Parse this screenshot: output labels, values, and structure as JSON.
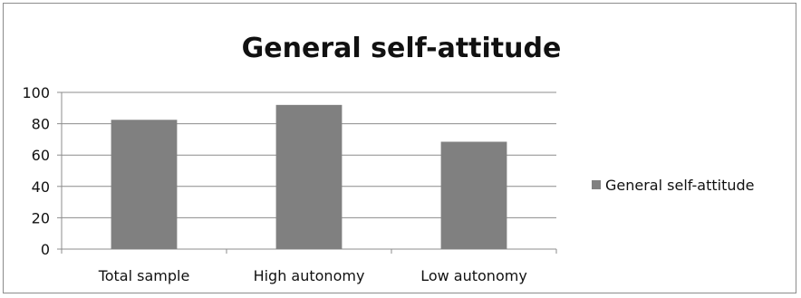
{
  "chart_data": {
    "type": "bar",
    "title": "General self-attitude",
    "categories": [
      "Total sample",
      "High autonomy",
      "Low autonomy"
    ],
    "series": [
      {
        "name": "General self-attitude",
        "values": [
          82.5,
          92,
          68.5
        ],
        "color": "#808080"
      }
    ],
    "ylim": [
      0,
      100
    ],
    "yticks": [
      0,
      20,
      40,
      60,
      80,
      100
    ],
    "grid": true,
    "legend": "right"
  }
}
